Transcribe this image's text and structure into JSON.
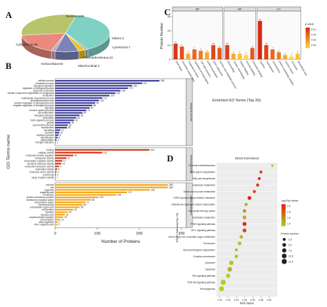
{
  "panels": {
    "A": "A",
    "B": "B",
    "C": "C",
    "D": "D"
  },
  "chart_data": [
    {
      "panel": "A",
      "type": "pie",
      "labels": [
        "Nucleus",
        "Others",
        "Lysosomal",
        "PlasmaMembrane",
        "Mitochondrial",
        "Extracellular",
        "Cytoplasmic"
      ],
      "values": [
        105,
        3,
        7,
        24,
        4,
        50,
        86
      ],
      "display_labels": [
        "Nucleus,105",
        "Others,3",
        "Lysosomal,7",
        "PlasmaMembrane,24",
        "Mitochondrial,4",
        "Extracellular,50",
        "Cytoplasmic,86"
      ],
      "colors": [
        "#7fd1c3",
        "#9aa8c8",
        "#f0c419",
        "#7b83b8",
        "#c9a3c3",
        "#e98a7c",
        "#b8c46b"
      ]
    },
    {
      "panel": "B",
      "type": "bar",
      "orientation": "horizontal",
      "ylabel": "GO Terms name",
      "xlabel": "Number of Proteins",
      "xlim": [
        0,
        300
      ],
      "xticks": [
        0,
        100,
        200,
        300
      ],
      "groups": [
        {
          "name": "biological process",
          "color": "#3f3f9c",
          "bars": [
            {
              "label": "cellular process",
              "value": 248
            },
            {
              "label": "metabolic process",
              "value": 207
            },
            {
              "label": "biological regulation",
              "value": 183
            },
            {
              "label": "regulation of biological process",
              "value": 173
            },
            {
              "label": "response to stimulus",
              "value": 155
            },
            {
              "label": "cellular component organization or biogenesis",
              "value": 143
            },
            {
              "label": "localization",
              "value": 129
            },
            {
              "label": "multicellular organismal process",
              "value": 112
            },
            {
              "label": "developmental process",
              "value": 104
            },
            {
              "label": "positive regulation of biological process",
              "value": 95
            },
            {
              "label": "negative regulation of biological process",
              "value": 88
            },
            {
              "label": "signaling",
              "value": 82
            },
            {
              "label": "immune system process",
              "value": 74
            },
            {
              "label": "cell proliferation",
              "value": 65
            },
            {
              "label": "biological adhesion",
              "value": 58
            },
            {
              "label": "locomotion",
              "value": 50
            },
            {
              "label": "multi-organism process",
              "value": 45
            },
            {
              "label": "growth",
              "value": 36
            },
            {
              "label": "reproductive process",
              "value": 30
            },
            {
              "label": "reproduction",
              "value": 28
            },
            {
              "label": "cell killing",
              "value": 12
            },
            {
              "label": "behavior",
              "value": 10
            },
            {
              "label": "rhythmic process",
              "value": 8
            },
            {
              "label": "detoxification",
              "value": 6
            },
            {
              "label": "pigmentation",
              "value": 3
            },
            {
              "label": "nitrogen utilization",
              "value": 1
            }
          ]
        },
        {
          "name": "molecular function",
          "color": "#d94a2a",
          "bars": [
            {
              "label": "binding",
              "value": 224
            },
            {
              "label": "catalytic activity",
              "value": 112
            },
            {
              "label": "molecular function regulator",
              "value": 43
            },
            {
              "label": "transporter activity",
              "value": 27
            },
            {
              "label": "transcription regulator activity",
              "value": 17
            },
            {
              "label": "structural molecule activity",
              "value": 14
            },
            {
              "label": "molecular transducer activity",
              "value": 9
            },
            {
              "label": "antioxidant activity",
              "value": 5
            },
            {
              "label": "molecular carrier activity",
              "value": 3
            },
            {
              "label": "protein tag",
              "value": 2
            },
            {
              "label": "cargo receptor activity",
              "value": 1
            }
          ]
        },
        {
          "name": "cellular component",
          "color": "#f2a81d",
          "bars": [
            {
              "label": "cell part",
              "value": 268
            },
            {
              "label": "cell",
              "value": 268
            },
            {
              "label": "organelle",
              "value": 225
            },
            {
              "label": "organelle part",
              "value": 171
            },
            {
              "label": "membrane",
              "value": 145
            },
            {
              "label": "protein-containing complex",
              "value": 103
            },
            {
              "label": "membrane-enclosed lumen",
              "value": 85
            },
            {
              "label": "extracellular region",
              "value": 72
            },
            {
              "label": "membrane part",
              "value": 65
            },
            {
              "label": "extracellular region part",
              "value": 58
            },
            {
              "label": "cell junction",
              "value": 43
            },
            {
              "label": "synapse",
              "value": 30
            },
            {
              "label": "synapse part",
              "value": 23
            },
            {
              "label": "supramolecular complex",
              "value": 19
            },
            {
              "label": "cell periphery",
              "value": 12
            },
            {
              "label": "other organism",
              "value": 7
            },
            {
              "label": "other organism part",
              "value": 5
            }
          ]
        }
      ]
    },
    {
      "panel": "C",
      "type": "bar",
      "xlabel": "Enriched GO Terms (Top 20)",
      "ylabel": "Protein Number",
      "ylim": [
        0,
        30
      ],
      "yticks": [
        0,
        10,
        20,
        30
      ],
      "facets": [
        "BP",
        "MF",
        "CC"
      ],
      "legend_title": "p.value",
      "legend_ticks": [
        "0.01",
        "0.02",
        "0.03",
        "0.04"
      ],
      "bars": [
        {
          "facet": "BP",
          "label": "DNA repair",
          "value": 11,
          "p": 0.004
        },
        {
          "facet": "BP",
          "label": "chromatin organization",
          "value": 9,
          "p": 0.01
        },
        {
          "facet": "BP",
          "label": "response to stress",
          "value": 4,
          "p": 0.03
        },
        {
          "facet": "BP",
          "label": "regulation of transcription",
          "value": 7,
          "p": 0.015
        },
        {
          "facet": "BP",
          "label": "cell cycle process",
          "value": 6,
          "p": 0.02
        },
        {
          "facet": "BP",
          "label": "protein localization",
          "value": 5,
          "p": 0.03
        },
        {
          "facet": "BP",
          "label": "gene expression",
          "value": 10,
          "p": 0.008
        },
        {
          "facet": "BP",
          "label": "nucleic acid metabolic process",
          "value": 8,
          "p": 0.012
        },
        {
          "facet": "MF",
          "label": "DNA binding",
          "value": 10,
          "p": 0.006
        },
        {
          "facet": "MF",
          "label": "nucleic acid binding",
          "value": 4,
          "p": 0.03
        },
        {
          "facet": "MF",
          "label": "histone binding",
          "value": 4,
          "p": 0.035
        },
        {
          "facet": "MF",
          "label": "enzyme binding",
          "value": 3,
          "p": 0.04
        },
        {
          "facet": "MF",
          "label": "chromatin binding",
          "value": 8,
          "p": 0.012
        },
        {
          "facet": "CC",
          "label": "nucleus",
          "value": 27,
          "p": 0.001
        },
        {
          "facet": "CC",
          "label": "nucleoplasm",
          "value": 10,
          "p": 0.007
        },
        {
          "facet": "CC",
          "label": "chromosome",
          "value": 7,
          "p": 0.015
        },
        {
          "facet": "CC",
          "label": "protein-containing complex",
          "value": 5,
          "p": 0.02
        },
        {
          "facet": "CC",
          "label": "nuclear lumen",
          "value": 3,
          "p": 0.03
        },
        {
          "facet": "CC",
          "label": "chromatin",
          "value": 2,
          "p": 0.04
        },
        {
          "facet": "CC",
          "label": "intracellular part",
          "value": 4,
          "p": 0.035
        }
      ]
    },
    {
      "panel": "D",
      "type": "scatter",
      "title": "KEGG Enrichment",
      "xlabel": "Rich factor",
      "ylabel": "KEGG Pathway(Top 20)",
      "xlim": [
        0.08,
        0.45
      ],
      "xticks": [
        "0.10",
        "0.15",
        "0.20",
        "0.25",
        "0.30",
        "0.35",
        "0.40"
      ],
      "color_legend_title": "-log10(p.value)",
      "color_legend_ticks": [
        "2.0",
        "1.8",
        "1.6",
        "1.4"
      ],
      "size_legend_title": "Protein number",
      "size_legend_values": [
        "2.5",
        "5.0",
        "7.5",
        "10.0",
        "12.5"
      ],
      "points": [
        {
          "pathway": "Proximal medulloblastoma",
          "rich": 0.42,
          "count": 1,
          "logp": 1.35
        },
        {
          "pathway": "Other glycan degradation",
          "rich": 0.35,
          "count": 2,
          "logp": 2.05
        },
        {
          "pathway": "Fatty acid biosynthesis",
          "rich": 0.34,
          "count": 2,
          "logp": 2.1
        },
        {
          "pathway": "Galactose metabolism",
          "rich": 0.33,
          "count": 3,
          "logp": 2.0
        },
        {
          "pathway": "Starch and sucrose metabolism",
          "rich": 0.31,
          "count": 3,
          "logp": 1.9
        },
        {
          "pathway": "EGFR tyrosine kinase inhibitor resistance",
          "rich": 0.28,
          "count": 5,
          "logp": 2.1
        },
        {
          "pathway": "Aldosterone-regulated sodium reabsorption",
          "rich": 0.26,
          "count": 3,
          "logp": 1.5
        },
        {
          "pathway": "Non-small cell lung cancer",
          "rich": 0.25,
          "count": 4,
          "logp": 1.6
        },
        {
          "pathway": "Pyrimidine metabolism",
          "rich": 0.25,
          "count": 5,
          "logp": 1.5
        },
        {
          "pathway": "PPAR signaling pathway",
          "rich": 0.25,
          "count": 6,
          "logp": 2.05
        },
        {
          "pathway": "HIF-1 signaling pathway",
          "rich": 0.25,
          "count": 6,
          "logp": 1.9
        },
        {
          "pathway": "Amino sugar and nucleotide sugar metabolism",
          "rich": 0.23,
          "count": 4,
          "logp": 1.45
        },
        {
          "pathway": "Peroxisome",
          "rich": 0.22,
          "count": 5,
          "logp": 1.4
        },
        {
          "pathway": "Glycosaminoglycan degradation",
          "rich": 0.2,
          "count": 2,
          "logp": 1.45
        },
        {
          "pathway": "Circadian entrainment",
          "rich": 0.2,
          "count": 4,
          "logp": 1.4
        },
        {
          "pathway": "Lysosome",
          "rich": 0.17,
          "count": 8,
          "logp": 1.4
        },
        {
          "pathway": "Apoptosis",
          "rich": 0.16,
          "count": 9,
          "logp": 1.5
        },
        {
          "pathway": "Ras signaling pathway",
          "rich": 0.15,
          "count": 7,
          "logp": 1.35
        },
        {
          "pathway": "PI3K-Akt signaling pathway",
          "rich": 0.12,
          "count": 13,
          "logp": 1.35
        },
        {
          "pathway": "Thermogenesis",
          "rich": 0.11,
          "count": 11,
          "logp": 1.35
        }
      ]
    }
  ]
}
